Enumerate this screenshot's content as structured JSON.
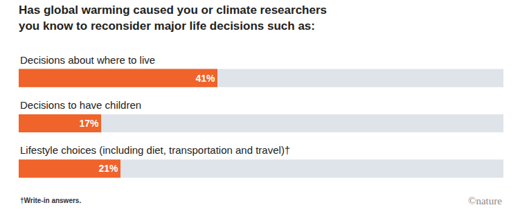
{
  "chart_data": {
    "type": "bar",
    "orientation": "horizontal",
    "title": "Has global warming caused you or climate researchers\nyou know to reconsider major life decisions such as:",
    "categories": [
      "Decisions about where to live",
      "Decisions to have children",
      "Lifestyle choices (including diet, transportation and travel)†"
    ],
    "values": [
      41,
      17,
      21
    ],
    "value_labels": [
      "41%",
      "17%",
      "21%"
    ],
    "data_labels": true,
    "color": "#f0632a",
    "xlim": [
      0,
      100
    ],
    "tick_labels": false,
    "grid": false,
    "annotations": [
      {
        "text": "†Write-in answers."
      },
      {
        "text": "©nature"
      }
    ]
  }
}
